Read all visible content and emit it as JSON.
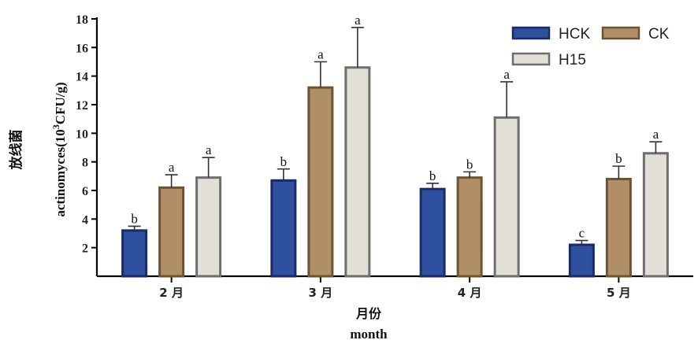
{
  "chart_data": {
    "type": "bar",
    "categories": [
      "2 月",
      "3 月",
      "4 月",
      "5 月"
    ],
    "series": [
      {
        "name": "HCK",
        "values": [
          3.2,
          6.7,
          6.1,
          2.2
        ],
        "errors": [
          0.3,
          0.8,
          0.4,
          0.3
        ],
        "labels": [
          "b",
          "b",
          "b",
          "c"
        ],
        "color": "#2f4f9f",
        "edge": "#1a2b66"
      },
      {
        "name": "CK",
        "values": [
          6.2,
          13.2,
          6.9,
          6.8
        ],
        "errors": [
          0.9,
          1.8,
          0.4,
          0.9
        ],
        "labels": [
          "a",
          "a",
          "b",
          "b"
        ],
        "color": "#b08f66",
        "edge": "#6b5434"
      },
      {
        "name": "H15",
        "values": [
          6.9,
          14.6,
          11.1,
          8.6
        ],
        "errors": [
          1.4,
          2.8,
          2.5,
          0.8
        ],
        "labels": [
          "a",
          "a",
          "a",
          "a"
        ],
        "color": "#e2dfd6",
        "edge": "#6e6e6e"
      }
    ],
    "ylim": [
      0,
      18
    ],
    "yticks": [
      2,
      4,
      6,
      8,
      10,
      12,
      14,
      16,
      18
    ],
    "ylabel_cn": "放线菌",
    "ylabel": "actinomyces(10³CFU/g)",
    "xlabel_cn": "月份",
    "xlabel": "month",
    "legend_position": "top-right",
    "grid": false
  }
}
